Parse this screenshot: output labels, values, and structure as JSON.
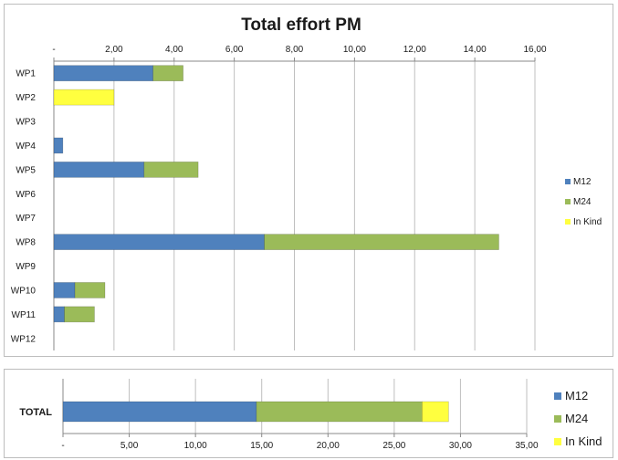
{
  "chart_data": [
    {
      "type": "bar",
      "orientation": "horizontal",
      "stacked": true,
      "title": "Total effort PM",
      "categories": [
        "WP1",
        "WP2",
        "WP3",
        "WP4",
        "WP5",
        "WP6",
        "WP7",
        "WP8",
        "WP9",
        "WP10",
        "WP11",
        "WP12"
      ],
      "series": [
        {
          "name": "M12",
          "color": "#4f81bd",
          "values": [
            3.3,
            0,
            0,
            0.3,
            3.0,
            0,
            0,
            7.0,
            0,
            0.7,
            0.35,
            0
          ]
        },
        {
          "name": "M24",
          "color": "#9bbb59",
          "values": [
            1.0,
            0,
            0,
            0,
            1.8,
            0,
            0,
            7.8,
            0,
            1.0,
            1.0,
            0
          ]
        },
        {
          "name": "In Kind",
          "color": "#ffff3f",
          "values": [
            0,
            2.0,
            0,
            0,
            0,
            0,
            0,
            0,
            0,
            0,
            0,
            0
          ]
        }
      ],
      "xlim": [
        0,
        16
      ],
      "ticks": [
        "-",
        "2,00",
        "4,00",
        "6,00",
        "8,00",
        "10,00",
        "12,00",
        "14,00",
        "16,00"
      ],
      "tick_position": "top",
      "grid": true,
      "legend": "right"
    },
    {
      "type": "bar",
      "orientation": "horizontal",
      "stacked": true,
      "categories": [
        "TOTAL"
      ],
      "series": [
        {
          "name": "M12",
          "color": "#4f81bd",
          "values": [
            14.6
          ]
        },
        {
          "name": "M24",
          "color": "#9bbb59",
          "values": [
            12.5
          ]
        },
        {
          "name": "In Kind",
          "color": "#ffff3f",
          "values": [
            2.0
          ]
        }
      ],
      "xlim": [
        0,
        35
      ],
      "ticks": [
        "-",
        "5,00",
        "10,00",
        "15,00",
        "20,00",
        "25,00",
        "30,00",
        "35,00"
      ],
      "tick_position": "bottom",
      "grid": true,
      "legend": "right"
    }
  ]
}
